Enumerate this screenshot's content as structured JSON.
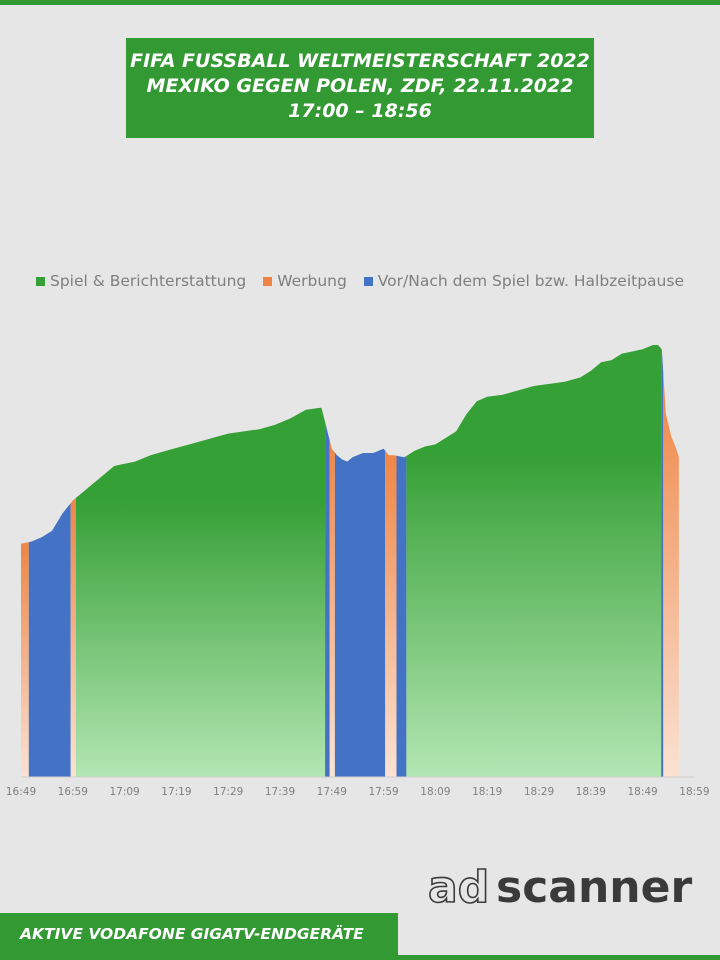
{
  "title": {
    "line1": "FIFA FUSSBALL WELTMEISTERSCHAFT 2022",
    "line2": "MEXIKO GEGEN POLEN, ZDF, 22.11.2022",
    "line3": "17:00 – 18:56"
  },
  "footer": {
    "label": "AKTIVE VODAFONE GIGATV-ENDGERÄTE",
    "logo_part1": "ad",
    "logo_part2": "scanner"
  },
  "colors": {
    "brand_green": "#339933",
    "green_top": "#35a035",
    "green_bottom": "#b3e6b3",
    "orange_top": "#ee8544",
    "orange_bottom": "#fbe2d3",
    "blue": "#4472c4"
  },
  "chart_data": {
    "type": "area",
    "title": "",
    "xlabel": "",
    "ylabel": "",
    "x_unit": "minutes",
    "x_start_label": "16:49",
    "x_end_label": "18:59",
    "xlim": [
      0,
      130
    ],
    "ylim": [
      0,
      100
    ],
    "x_ticks": [
      {
        "x": 0,
        "label": "16:49"
      },
      {
        "x": 10,
        "label": "16:59"
      },
      {
        "x": 20,
        "label": "17:09"
      },
      {
        "x": 30,
        "label": "17:19"
      },
      {
        "x": 40,
        "label": "17:29"
      },
      {
        "x": 50,
        "label": "17:39"
      },
      {
        "x": 60,
        "label": "17:49"
      },
      {
        "x": 70,
        "label": "17:59"
      },
      {
        "x": 80,
        "label": "18:09"
      },
      {
        "x": 90,
        "label": "18:19"
      },
      {
        "x": 100,
        "label": "18:29"
      },
      {
        "x": 110,
        "label": "18:39"
      },
      {
        "x": 120,
        "label": "18:49"
      },
      {
        "x": 130,
        "label": "18:59"
      }
    ],
    "legend": [
      {
        "label": "Spiel & Berichterstattung",
        "color": "#35a035"
      },
      {
        "label": "Werbung",
        "color": "#ee8544"
      },
      {
        "label": "Vor/Nach dem Spiel bzw. Halbzeitpause",
        "color": "#4472c4"
      }
    ],
    "curve": [
      [
        0,
        54
      ],
      [
        2,
        54.5
      ],
      [
        4,
        55.5
      ],
      [
        6,
        57
      ],
      [
        8,
        61
      ],
      [
        10,
        64
      ],
      [
        12,
        66
      ],
      [
        14,
        68
      ],
      [
        16,
        70
      ],
      [
        18,
        72
      ],
      [
        20,
        72.5
      ],
      [
        22,
        73
      ],
      [
        25,
        74.5
      ],
      [
        28,
        75.5
      ],
      [
        31,
        76.5
      ],
      [
        34,
        77.5
      ],
      [
        37,
        78.5
      ],
      [
        40,
        79.5
      ],
      [
        43,
        80
      ],
      [
        46,
        80.5
      ],
      [
        49,
        81.5
      ],
      [
        52,
        83
      ],
      [
        55,
        85
      ],
      [
        58,
        85.5
      ],
      [
        60,
        76
      ],
      [
        61,
        74.5
      ],
      [
        62,
        73.5
      ],
      [
        63,
        73
      ],
      [
        64,
        74
      ],
      [
        66,
        75
      ],
      [
        68,
        75
      ],
      [
        70,
        76
      ],
      [
        71,
        74.5
      ],
      [
        72,
        74.5
      ],
      [
        74,
        74
      ],
      [
        76,
        75.5
      ],
      [
        78,
        76.5
      ],
      [
        80,
        77
      ],
      [
        82,
        78.5
      ],
      [
        84,
        80
      ],
      [
        86,
        84
      ],
      [
        88,
        87
      ],
      [
        90,
        88
      ],
      [
        93,
        88.5
      ],
      [
        96,
        89.5
      ],
      [
        99,
        90.5
      ],
      [
        102,
        91
      ],
      [
        105,
        91.5
      ],
      [
        108,
        92.5
      ],
      [
        110,
        94
      ],
      [
        112,
        96
      ],
      [
        114,
        96.5
      ],
      [
        116,
        98
      ],
      [
        118,
        98.5
      ],
      [
        120,
        99
      ],
      [
        122,
        100
      ],
      [
        123,
        100
      ],
      [
        123.7,
        99
      ],
      [
        124.5,
        84
      ],
      [
        125.5,
        79
      ],
      [
        126.5,
        76
      ],
      [
        127,
        74
      ]
    ],
    "segments": [
      {
        "category": "Werbung",
        "x0": 0,
        "x1": 1.5
      },
      {
        "category": "Vor/Nach dem Spiel bzw. Halbzeitpause",
        "x0": 1.5,
        "x1": 9.6
      },
      {
        "category": "Werbung",
        "x0": 9.6,
        "x1": 10.6
      },
      {
        "category": "Spiel & Berichterstattung",
        "x0": 10.6,
        "x1": 58.7
      },
      {
        "category": "Vor/Nach dem Spiel bzw. Halbzeitpause",
        "x0": 58.7,
        "x1": 59.6
      },
      {
        "category": "Werbung",
        "x0": 59.6,
        "x1": 60.6
      },
      {
        "category": "Vor/Nach dem Spiel bzw. Halbzeitpause",
        "x0": 60.6,
        "x1": 70.3
      },
      {
        "category": "Werbung",
        "x0": 70.3,
        "x1": 72.5
      },
      {
        "category": "Vor/Nach dem Spiel bzw. Halbzeitpause",
        "x0": 72.5,
        "x1": 74.4
      },
      {
        "category": "Spiel & Berichterstattung",
        "x0": 74.4,
        "x1": 123.6
      },
      {
        "category": "Vor/Nach dem Spiel bzw. Halbzeitpause",
        "x0": 123.6,
        "x1": 124.0
      },
      {
        "category": "Werbung",
        "x0": 124.0,
        "x1": 127
      }
    ],
    "grid": false,
    "legend_position": "top-center"
  }
}
